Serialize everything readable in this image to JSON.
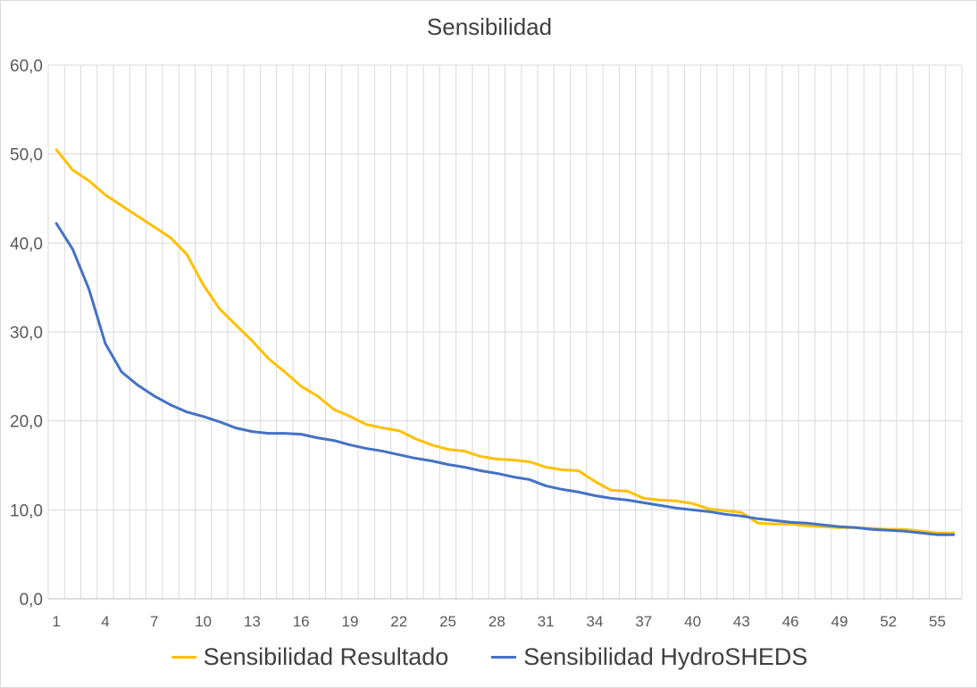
{
  "chart_data": {
    "type": "line",
    "title": "Sensibilidad",
    "xlabel": "",
    "ylabel": "",
    "x": [
      1,
      2,
      3,
      4,
      5,
      6,
      7,
      8,
      9,
      10,
      11,
      12,
      13,
      14,
      15,
      16,
      17,
      18,
      19,
      20,
      21,
      22,
      23,
      24,
      25,
      26,
      27,
      28,
      29,
      30,
      31,
      32,
      33,
      34,
      35,
      36,
      37,
      38,
      39,
      40,
      41,
      42,
      43,
      44,
      45,
      46,
      47,
      48,
      49,
      50,
      51,
      52,
      53,
      54,
      55,
      56
    ],
    "x_tick_labels": [
      "1",
      "4",
      "7",
      "10",
      "13",
      "16",
      "19",
      "22",
      "25",
      "28",
      "31",
      "34",
      "37",
      "40",
      "43",
      "46",
      "49",
      "52",
      "55"
    ],
    "y_tick_labels": [
      "0,0",
      "10,0",
      "20,0",
      "30,0",
      "40,0",
      "50,0",
      "60,0"
    ],
    "ylim": [
      0,
      60
    ],
    "grid": true,
    "legend_position": "bottom",
    "series": [
      {
        "name": "Sensibilidad Resultado",
        "color": "#FFC000",
        "values": [
          50.5,
          48.2,
          47.0,
          45.4,
          44.2,
          43.0,
          41.8,
          40.6,
          38.7,
          35.3,
          32.6,
          30.8,
          29.0,
          27.0,
          25.5,
          23.9,
          22.8,
          21.3,
          20.5,
          19.6,
          19.2,
          18.9,
          18.0,
          17.3,
          16.8,
          16.6,
          16.0,
          15.7,
          15.6,
          15.4,
          14.8,
          14.5,
          14.4,
          13.2,
          12.2,
          12.1,
          11.3,
          11.1,
          11.0,
          10.7,
          10.1,
          9.9,
          9.7,
          8.5,
          8.4,
          8.4,
          8.2,
          8.1,
          8.0,
          8.0,
          7.9,
          7.8,
          7.8,
          7.6,
          7.4,
          7.4
        ]
      },
      {
        "name": "Sensibilidad HydroSHEDS",
        "color": "#4472C4",
        "values": [
          42.2,
          39.3,
          34.8,
          28.7,
          25.5,
          24.0,
          22.8,
          21.8,
          21.0,
          20.5,
          19.9,
          19.2,
          18.8,
          18.6,
          18.6,
          18.5,
          18.1,
          17.8,
          17.3,
          16.9,
          16.6,
          16.2,
          15.8,
          15.5,
          15.1,
          14.8,
          14.4,
          14.1,
          13.7,
          13.4,
          12.7,
          12.3,
          12.0,
          11.6,
          11.3,
          11.1,
          10.8,
          10.5,
          10.2,
          10.0,
          9.8,
          9.5,
          9.3,
          9.0,
          8.8,
          8.6,
          8.5,
          8.3,
          8.1,
          8.0,
          7.8,
          7.7,
          7.6,
          7.4,
          7.2,
          7.2
        ]
      }
    ]
  }
}
